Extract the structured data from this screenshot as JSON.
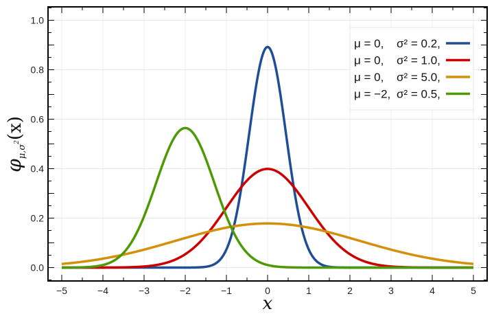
{
  "chart_data": {
    "type": "line",
    "title": "",
    "xlabel": "x",
    "ylabel": "φμ,σ²(x)",
    "ylabel_main": "φ",
    "ylabel_sub": "μ,σ",
    "ylabel_sup": "2",
    "ylabel_arg": "(x)",
    "xlim": [
      -5,
      5
    ],
    "ylim": [
      -0.05,
      1.05
    ],
    "xticks": [
      -5,
      -4,
      -3,
      -2,
      -1,
      0,
      1,
      2,
      3,
      4,
      5
    ],
    "xtick_labels": [
      "−5",
      "−4",
      "−3",
      "−2",
      "−1",
      "0",
      "1",
      "2",
      "3",
      "4",
      "5"
    ],
    "yticks": [
      0,
      0.2,
      0.4,
      0.6,
      0.8,
      1.0
    ],
    "ytick_labels": [
      "0.0",
      "0.2",
      "0.4",
      "0.6",
      "0.8",
      "1.0"
    ],
    "grid": true,
    "legend_position": "top-right",
    "series": [
      {
        "name": "μ=0, σ²=0.2,",
        "mu_label": "μ = 0,",
        "sigma_label": "σ² = 0.2,",
        "mu": 0,
        "variance": 0.2,
        "color": "#1f4e96"
      },
      {
        "name": "μ=0, σ²=1.0,",
        "mu_label": "μ = 0,",
        "sigma_label": "σ² = 1.0,",
        "mu": 0,
        "variance": 1.0,
        "color": "#cc0000"
      },
      {
        "name": "μ=0, σ²=5.0,",
        "mu_label": "μ = 0,",
        "sigma_label": "σ² = 5.0,",
        "mu": 0,
        "variance": 5.0,
        "color": "#d4900a"
      },
      {
        "name": "μ=−2, σ²=0.5,",
        "mu_label": "μ = −2,",
        "sigma_label": "σ² = 0.5,",
        "mu": -2,
        "variance": 0.5,
        "color": "#4e9a06"
      }
    ]
  }
}
